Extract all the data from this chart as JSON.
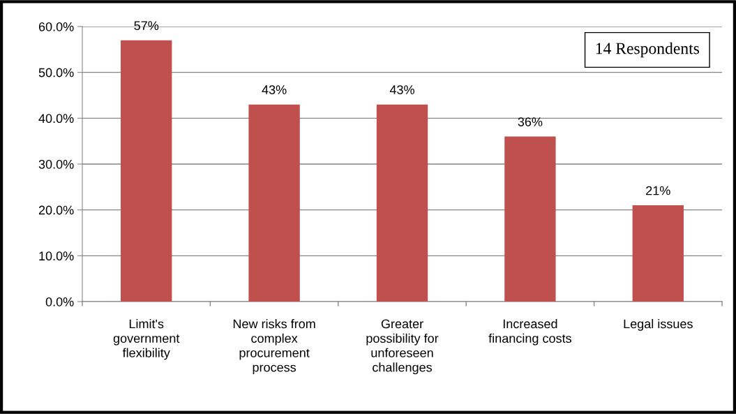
{
  "chart_data": {
    "type": "bar",
    "categories": [
      "Limit's\ngovernment\nflexibility",
      "New risks from\ncomplex\nprocurement\nprocess",
      "Greater\npossibility for\nunforeseen\nchallenges",
      "Increased\nfinancing costs",
      "Legal issues"
    ],
    "values": [
      57,
      43,
      43,
      36,
      21
    ],
    "value_labels": [
      "57%",
      "43%",
      "43%",
      "36%",
      "21%"
    ],
    "color": "#c0504d",
    "ylim": [
      0,
      60
    ],
    "yticks": [
      {
        "value": 0,
        "label": "0.0%"
      },
      {
        "value": 10,
        "label": "10.0%"
      },
      {
        "value": 20,
        "label": "20.0%"
      },
      {
        "value": 30,
        "label": "30.0%"
      },
      {
        "value": 40,
        "label": "40.0%"
      },
      {
        "value": 50,
        "label": "50.0%"
      },
      {
        "value": 60,
        "label": "60.0%"
      }
    ],
    "grid": "y",
    "annotations": [
      "14 Respondents"
    ]
  }
}
